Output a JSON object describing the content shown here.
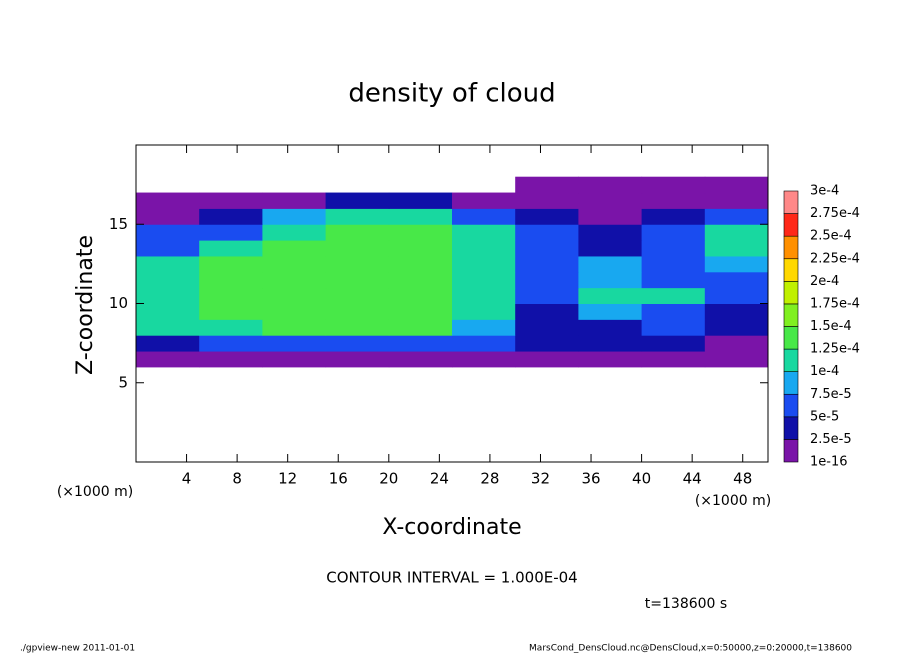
{
  "chart_data": {
    "type": "heatmap",
    "title": "density of cloud",
    "xlabel": "X-coordinate",
    "ylabel": "Z-coordinate",
    "x_unit": "(×1000 m)",
    "y_unit": "(×1000 m)",
    "contour_note": "CONTOUR INTERVAL = 1.000E-04",
    "time_note": "t=138600 s",
    "footer_left": "./gpview-new  2011-01-01",
    "footer_right": "MarsCond_DensCloud.nc@DensCloud,x=0:50000,z=0:20000,t=138600",
    "xlim": [
      0,
      50
    ],
    "ylim": [
      0,
      20
    ],
    "xticks": [
      4,
      8,
      12,
      16,
      20,
      24,
      28,
      32,
      36,
      40,
      44,
      48
    ],
    "yticks": [
      5,
      10,
      15
    ],
    "x_edges": [
      0,
      5,
      10,
      15,
      20,
      25,
      30,
      35,
      40,
      45,
      50
    ],
    "y_edges": [
      6,
      7,
      8,
      9,
      10,
      11,
      12,
      13,
      14,
      15,
      16,
      17,
      18
    ],
    "values": [
      [
        1e-05,
        1e-05,
        1e-05,
        1e-05,
        1e-05,
        1e-05,
        1e-05,
        1e-05,
        1e-05,
        1e-05
      ],
      [
        3e-05,
        6e-05,
        6e-05,
        6e-05,
        6e-05,
        6e-05,
        3e-05,
        3e-05,
        3e-05,
        2e-05
      ],
      [
        0.00011,
        0.00012,
        0.00013,
        0.00013,
        0.00013,
        8e-05,
        3e-05,
        4e-05,
        5e-05,
        3e-05
      ],
      [
        0.00012,
        0.00013,
        0.00013,
        0.00013,
        0.00013,
        0.00011,
        4e-05,
        9e-05,
        6e-05,
        4e-05
      ],
      [
        0.00012,
        0.00013,
        0.00013,
        0.00013,
        0.00013,
        0.00012,
        5e-05,
        0.00011,
        0.0001,
        5e-05
      ],
      [
        0.00012,
        0.00013,
        0.00013,
        0.00013,
        0.00013,
        0.00012,
        5e-05,
        8e-05,
        7e-05,
        7e-05
      ],
      [
        0.00012,
        0.00013,
        0.00013,
        0.00013,
        0.00013,
        0.00012,
        6e-05,
        9e-05,
        5e-05,
        9e-05
      ],
      [
        7e-05,
        0.00011,
        0.00013,
        0.00013,
        0.00013,
        0.00012,
        7e-05,
        4e-05,
        6e-05,
        0.00011
      ],
      [
        5e-05,
        6e-05,
        0.00012,
        0.00013,
        0.00013,
        0.0001,
        7e-05,
        3e-05,
        6e-05,
        0.0001
      ],
      [
        2e-05,
        3e-05,
        8e-05,
        0.00011,
        0.00011,
        7e-05,
        4e-05,
        2e-05,
        3e-05,
        5e-05
      ],
      [
        1e-05,
        1e-05,
        1e-05,
        3e-05,
        3e-05,
        2e-05,
        1e-05,
        1e-05,
        1e-05,
        1e-05
      ],
      [
        0,
        0,
        0,
        0,
        0,
        0,
        1e-05,
        1e-05,
        1e-05,
        1e-05
      ]
    ],
    "levels": [
      1e-16,
      {
        "value": 2.5e-05,
        "label": "2.5e-5"
      },
      {
        "value": 5e-05,
        "label": "5e-5"
      },
      {
        "value": 7.5e-05,
        "label": "7.5e-5"
      },
      {
        "value": 0.0001,
        "label": "1e-4"
      },
      {
        "value": 0.000125,
        "label": "1.25e-4"
      },
      {
        "value": 0.00015,
        "label": "1.5e-4"
      },
      {
        "value": 0.000175,
        "label": "1.75e-4"
      },
      {
        "value": 0.0002,
        "label": "2e-4"
      },
      {
        "value": 0.000225,
        "label": "2.25e-4"
      },
      {
        "value": 0.00025,
        "label": "2.5e-4"
      },
      {
        "value": 0.000275,
        "label": "2.75e-4"
      },
      {
        "value": 0.0003,
        "label": "3e-4"
      }
    ],
    "colors": [
      "#7a14a8",
      "#1010a8",
      "#1a4cf0",
      "#18a8f0",
      "#18d8a0",
      "#48e848",
      "#80f020",
      "#c0f000",
      "#ffd800",
      "#ff9000",
      "#ff2818",
      "#ff8888"
    ]
  }
}
